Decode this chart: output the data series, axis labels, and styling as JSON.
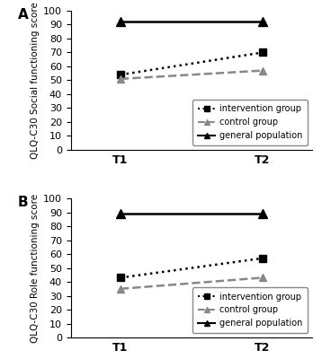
{
  "panel_A": {
    "ylabel": "QLQ-C30 Social functioning score",
    "ylim": [
      0,
      100
    ],
    "yticks": [
      0,
      10,
      20,
      30,
      40,
      50,
      60,
      70,
      80,
      90,
      100
    ],
    "intervention": [
      54,
      70
    ],
    "control": [
      51,
      57
    ],
    "general": [
      92,
      92
    ],
    "label": "A"
  },
  "panel_B": {
    "ylabel": "QLQ-C30 Role functioning score",
    "ylim": [
      0,
      100
    ],
    "yticks": [
      0,
      10,
      20,
      30,
      40,
      50,
      60,
      70,
      80,
      90,
      100
    ],
    "intervention": [
      43,
      57
    ],
    "control": [
      35,
      43
    ],
    "general": [
      89,
      89
    ],
    "label": "B"
  },
  "xticks": [
    1,
    3
  ],
  "xticklabels": [
    "T1",
    "T2"
  ],
  "xlim": [
    0.3,
    3.7
  ],
  "intervention_color": "#000000",
  "control_color": "#888888",
  "general_color": "#000000",
  "legend_labels": [
    "intervention group",
    "control group",
    "general population"
  ],
  "background_color": "#ffffff"
}
